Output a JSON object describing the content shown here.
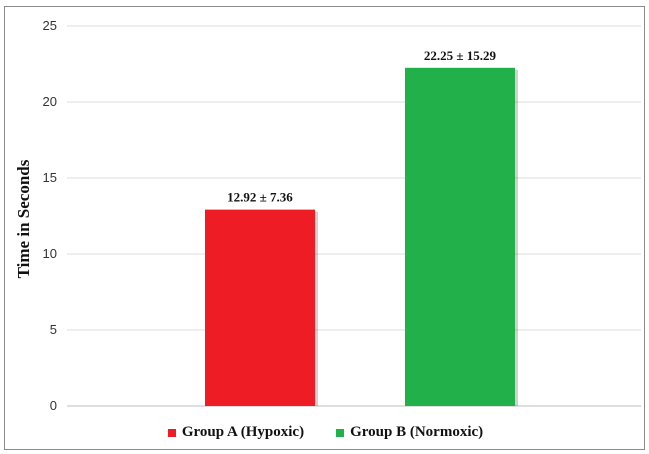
{
  "chart_data": {
    "type": "bar",
    "title": "",
    "xlabel": "",
    "ylabel": "Time in Seconds",
    "ylim": [
      0,
      25
    ],
    "yticks": [
      "0",
      "5",
      "10",
      "15",
      "20",
      "25"
    ],
    "grid": true,
    "legend_position": "bottom",
    "series": [
      {
        "name": "Group A (Hypoxic)",
        "value": 12.92,
        "data_label": "12.92 ± 7.36",
        "color": "#ee1c24"
      },
      {
        "name": "Group B (Normoxic)",
        "value": 22.25,
        "data_label": "22.25 ± 15.29",
        "color": "#22b04b"
      }
    ]
  }
}
